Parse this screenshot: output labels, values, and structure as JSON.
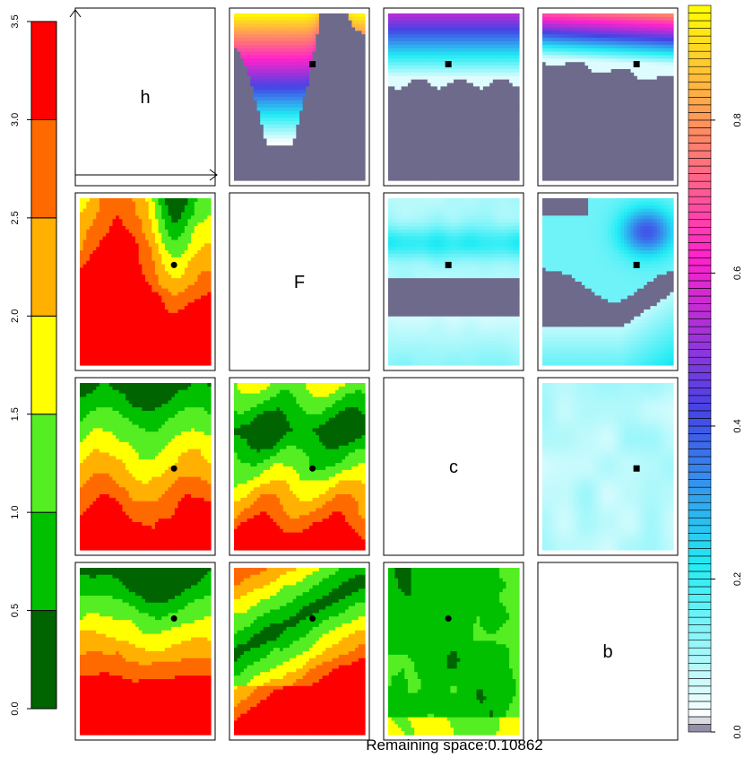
{
  "chart_data": {
    "type": "heatmap",
    "title": "",
    "footer": "Remaining space:0.10862",
    "variables": [
      "h",
      "F",
      "c",
      "b"
    ],
    "left_legend": {
      "ticks": [
        "0.0",
        "0.5",
        "1.0",
        "1.5",
        "2.0",
        "2.5",
        "3.0",
        "3.5"
      ],
      "range": [
        0,
        3.5
      ],
      "bands": [
        {
          "from": 0.0,
          "to": 0.5,
          "color": "#006400"
        },
        {
          "from": 0.5,
          "to": 1.0,
          "color": "#00c000"
        },
        {
          "from": 1.0,
          "to": 1.5,
          "color": "#55ee22"
        },
        {
          "from": 1.5,
          "to": 2.0,
          "color": "#ffff00"
        },
        {
          "from": 2.0,
          "to": 2.5,
          "color": "#ffb000"
        },
        {
          "from": 2.5,
          "to": 3.0,
          "color": "#ff6a00"
        },
        {
          "from": 3.0,
          "to": 3.5,
          "color": "#ff0000"
        }
      ]
    },
    "right_legend": {
      "ticks": [
        "0.0",
        "0.2",
        "0.4",
        "0.6",
        "0.8"
      ],
      "range": [
        0,
        0.95
      ],
      "stops": [
        {
          "v": 0.0,
          "color": "#6e6a8c"
        },
        {
          "v": 0.02,
          "color": "#ffffff"
        },
        {
          "v": 0.22,
          "color": "#22ecf4"
        },
        {
          "v": 0.42,
          "color": "#4444e6"
        },
        {
          "v": 0.62,
          "color": "#ff22cc"
        },
        {
          "v": 0.78,
          "color": "#ff8866"
        },
        {
          "v": 0.95,
          "color": "#ffff00"
        }
      ]
    },
    "optimum": {
      "h": 0.72,
      "F": 0.6,
      "c": 0.46,
      "b": 0.72
    },
    "panels": [
      {
        "row": 0,
        "col": 1,
        "style": "upper"
      },
      {
        "row": 0,
        "col": 2,
        "style": "upper"
      },
      {
        "row": 0,
        "col": 3,
        "style": "upper"
      },
      {
        "row": 1,
        "col": 0,
        "style": "lower"
      },
      {
        "row": 1,
        "col": 2,
        "style": "upper"
      },
      {
        "row": 1,
        "col": 3,
        "style": "upper"
      },
      {
        "row": 2,
        "col": 0,
        "style": "lower"
      },
      {
        "row": 2,
        "col": 1,
        "style": "lower"
      },
      {
        "row": 2,
        "col": 3,
        "style": "upper"
      },
      {
        "row": 3,
        "col": 0,
        "style": "lower"
      },
      {
        "row": 3,
        "col": 1,
        "style": "lower"
      },
      {
        "row": 3,
        "col": 2,
        "style": "lower"
      }
    ]
  }
}
